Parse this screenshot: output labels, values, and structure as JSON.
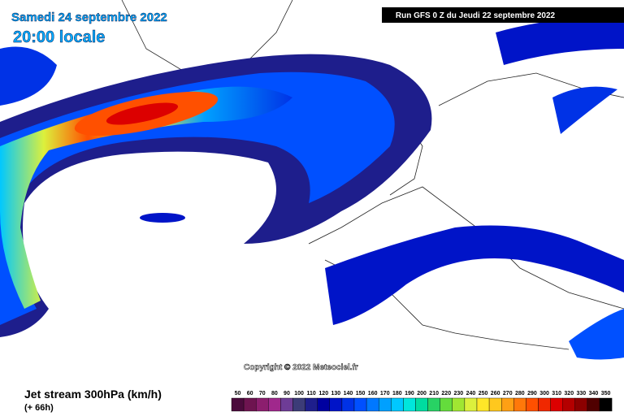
{
  "header": {
    "date": "Samedi 24 septembre 2022",
    "time": "20:00 locale",
    "run": "Run GFS 0 Z du Jeudi 22 septembre 2022"
  },
  "copyright": "Copyright © 2022 Meteociel.fr",
  "footer": {
    "title": "Jet stream 300hPa (km/h)",
    "lead": "(+ 66h)"
  },
  "legend": {
    "labels": [
      "50",
      "60",
      "70",
      "80",
      "90",
      "100",
      "110",
      "120",
      "130",
      "140",
      "150",
      "160",
      "170",
      "180",
      "190",
      "200",
      "210",
      "220",
      "230",
      "240",
      "250",
      "260",
      "270",
      "280",
      "290",
      "300",
      "310",
      "320",
      "330",
      "340",
      "350"
    ],
    "colors": [
      "#4b0a3c",
      "#6e1450",
      "#8c1e6e",
      "#a0288c",
      "#6e3c96",
      "#3c3c78",
      "#1e1e8c",
      "#0000a0",
      "#0014c8",
      "#0032e6",
      "#0050ff",
      "#0078ff",
      "#00a0ff",
      "#00c8ff",
      "#00e6dc",
      "#00dca0",
      "#28d264",
      "#64dc3c",
      "#a0e632",
      "#dcf03c",
      "#ffe628",
      "#ffc81e",
      "#ffa014",
      "#ff780a",
      "#ff5000",
      "#f02800",
      "#dc0000",
      "#b40000",
      "#8c0000",
      "#500000",
      "#000000"
    ]
  }
}
